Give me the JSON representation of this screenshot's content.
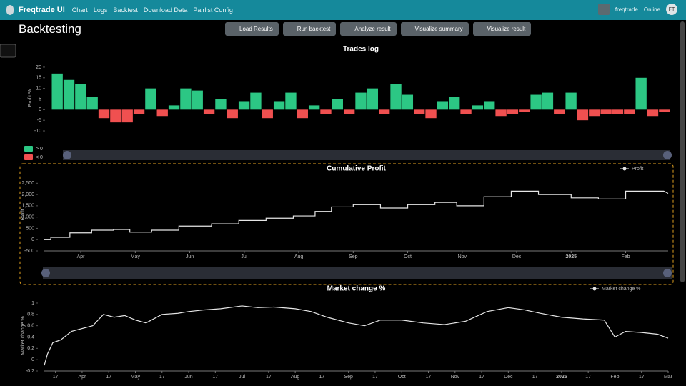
{
  "nav": {
    "brand": "Freqtrade UI",
    "links": [
      "Chart",
      "Logs",
      "Backtest",
      "Download Data",
      "Pairlist Config"
    ],
    "user": "freqtrade",
    "status": "Online",
    "avatar": "FT"
  },
  "header": {
    "title": "Backtesting",
    "buttons": [
      "Load Results",
      "Run backtest",
      "Analyze result",
      "Visualize summary",
      "Visualize result"
    ]
  },
  "chart_data": [
    {
      "type": "bar",
      "title": "Trades log",
      "y_label": "Profit %",
      "values": [
        17,
        14,
        12,
        6,
        -4,
        -6,
        -6,
        -2,
        10,
        -3,
        2,
        10,
        9,
        -2,
        5,
        -4,
        4,
        8,
        -4,
        4,
        8,
        -4,
        2,
        -2,
        5,
        -2,
        8,
        10,
        -2,
        12,
        7,
        -2,
        -4,
        4,
        6,
        -2,
        2,
        4,
        -3,
        -2,
        -1,
        7,
        8,
        -2,
        8,
        -5,
        -3,
        -2,
        -2,
        -2,
        15,
        -3,
        -1
      ],
      "ylim": [
        -11,
        22
      ],
      "yticks": [
        20,
        15,
        10,
        5,
        0,
        -5,
        -10
      ],
      "legend": [
        {
          "name": "> 0",
          "color": "#2cc784"
        },
        {
          "name": "< 0",
          "color": "#f05050"
        }
      ]
    },
    {
      "type": "line",
      "title": "Cumulative Profit",
      "y_label": "Profit",
      "x": [
        0.33,
        0.45,
        0.45,
        0.8,
        0.8,
        1.2,
        1.2,
        1.6,
        1.6,
        1.9,
        1.9,
        2.3,
        2.3,
        2.8,
        2.8,
        3.4,
        3.4,
        3.9,
        3.9,
        4.4,
        4.4,
        4.9,
        4.9,
        5.3,
        5.3,
        5.6,
        5.6,
        6.0,
        6.0,
        6.5,
        6.5,
        7.0,
        7.0,
        7.5,
        7.5,
        7.9,
        7.9,
        8.4,
        8.4,
        8.9,
        8.9,
        9.4,
        9.4,
        10.0,
        10.0,
        10.5,
        10.5,
        11.0,
        11.0,
        11.7,
        11.78
      ],
      "series": [
        {
          "name": "Profit",
          "color": "#e6e6e6",
          "values": [
            0,
            0,
            100,
            100,
            300,
            300,
            420,
            420,
            450,
            450,
            330,
            330,
            420,
            420,
            600,
            600,
            700,
            700,
            850,
            850,
            950,
            950,
            1050,
            1050,
            1250,
            1250,
            1450,
            1450,
            1550,
            1550,
            1400,
            1400,
            1550,
            1550,
            1650,
            1650,
            1500,
            1500,
            1900,
            1900,
            2150,
            2150,
            2000,
            2000,
            1850,
            1850,
            1800,
            1800,
            2150,
            2150,
            2050
          ]
        }
      ],
      "xlim": [
        0.33,
        11.78
      ],
      "xticks": [
        {
          "value": 1,
          "label": "Apr"
        },
        {
          "value": 2,
          "label": "May"
        },
        {
          "value": 3,
          "label": "Jun"
        },
        {
          "value": 4,
          "label": "Jul"
        },
        {
          "value": 5,
          "label": "Aug"
        },
        {
          "value": 6,
          "label": "Sep"
        },
        {
          "value": 7,
          "label": "Oct"
        },
        {
          "value": 8,
          "label": "Nov"
        },
        {
          "value": 9,
          "label": "Dec"
        },
        {
          "value": 10,
          "label": "2025"
        },
        {
          "value": 11,
          "label": "Feb"
        }
      ],
      "ylim": [
        -500,
        2700
      ],
      "yticks": [
        -500,
        0,
        500,
        {
          "value": 1000,
          "label": "1,000"
        },
        {
          "value": 1500,
          "label": "1,500"
        },
        {
          "value": 2000,
          "label": "2,000"
        },
        {
          "value": 2500,
          "label": "2,500"
        }
      ]
    },
    {
      "type": "line",
      "title": "Market change %",
      "y_label": "Market change %",
      "x": [
        0.29,
        0.35,
        0.45,
        0.6,
        0.8,
        1,
        1.2,
        1.4,
        1.6,
        1.8,
        2.0,
        2.2,
        2.5,
        2.8,
        3.0,
        3.3,
        3.6,
        4.0,
        4.3,
        4.6,
        5.0,
        5.3,
        5.6,
        6.0,
        6.3,
        6.6,
        7.0,
        7.4,
        7.8,
        8.2,
        8.6,
        9.0,
        9.3,
        9.6,
        10.0,
        10.4,
        10.8,
        11.0,
        11.2,
        11.5,
        11.8,
        12.0
      ],
      "series": [
        {
          "name": "Market change %",
          "color": "#e6e6e6",
          "values": [
            -0.1,
            0.1,
            0.3,
            0.35,
            0.5,
            0.55,
            0.6,
            0.8,
            0.75,
            0.78,
            0.7,
            0.65,
            0.8,
            0.82,
            0.85,
            0.88,
            0.9,
            0.95,
            0.92,
            0.93,
            0.9,
            0.85,
            0.75,
            0.65,
            0.6,
            0.7,
            0.7,
            0.65,
            0.62,
            0.68,
            0.85,
            0.92,
            0.88,
            0.82,
            0.75,
            0.72,
            0.7,
            0.4,
            0.5,
            0.48,
            0.45,
            0.38
          ]
        }
      ],
      "xlim": [
        0.29,
        12
      ],
      "xticks": [
        {
          "value": 0.5,
          "label": "17"
        },
        {
          "value": 1,
          "label": "Apr"
        },
        {
          "value": 1.5,
          "label": "17"
        },
        {
          "value": 2,
          "label": "May"
        },
        {
          "value": 2.5,
          "label": "17"
        },
        {
          "value": 3,
          "label": "Jun"
        },
        {
          "value": 3.5,
          "label": "17"
        },
        {
          "value": 4,
          "label": "Jul"
        },
        {
          "value": 4.5,
          "label": "17"
        },
        {
          "value": 5,
          "label": "Aug"
        },
        {
          "value": 5.5,
          "label": "17"
        },
        {
          "value": 6,
          "label": "Sep"
        },
        {
          "value": 6.5,
          "label": "17"
        },
        {
          "value": 7,
          "label": "Oct"
        },
        {
          "value": 7.5,
          "label": "17"
        },
        {
          "value": 8,
          "label": "Nov"
        },
        {
          "value": 8.5,
          "label": "17"
        },
        {
          "value": 9,
          "label": "Dec"
        },
        {
          "value": 9.5,
          "label": "17"
        },
        {
          "value": 10,
          "label": "2025"
        },
        {
          "value": 10.5,
          "label": "17"
        },
        {
          "value": 11,
          "label": "Feb"
        },
        {
          "value": 11.5,
          "label": "17"
        },
        {
          "value": 12,
          "label": "Mar"
        }
      ],
      "ylim": [
        -0.2,
        1.05
      ],
      "yticks": [
        -0.2,
        0,
        0.2,
        0.4,
        0.6,
        0.8,
        1
      ]
    }
  ]
}
